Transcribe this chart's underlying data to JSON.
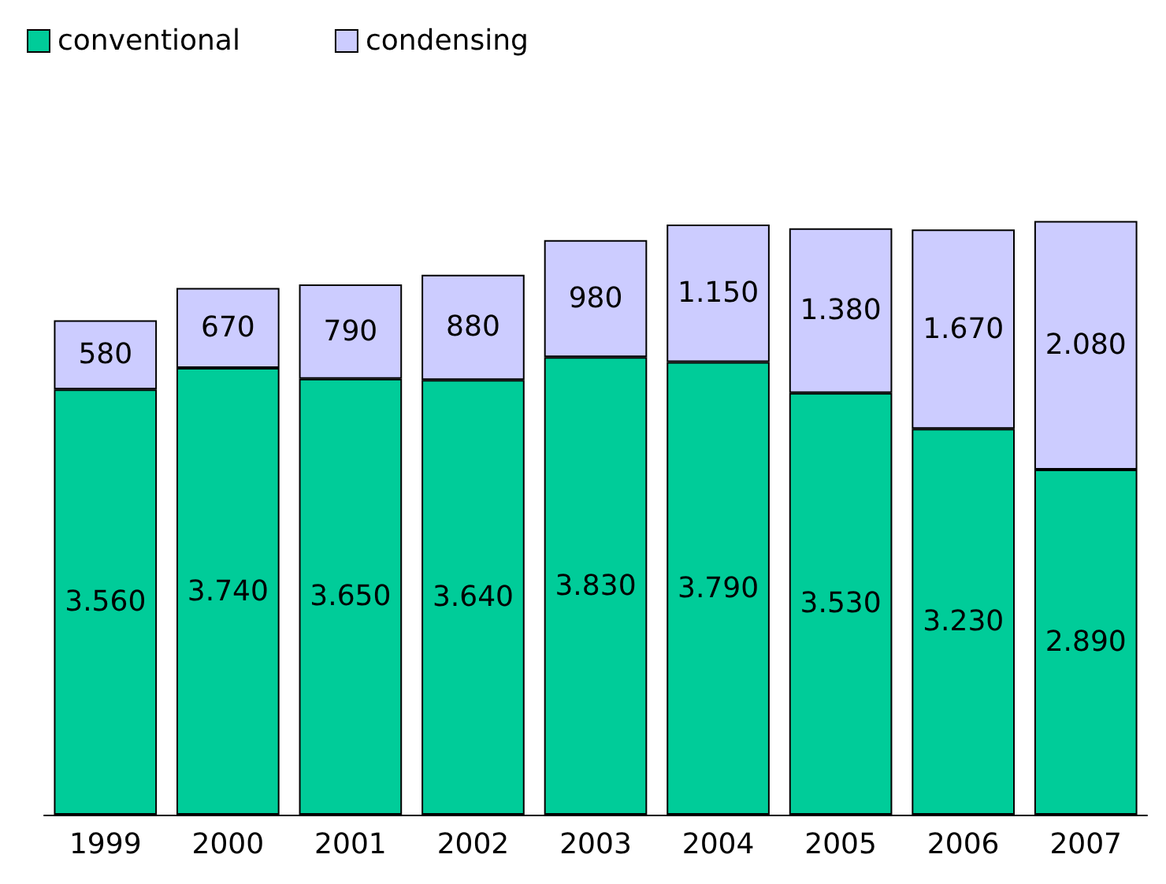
{
  "chart_data": {
    "type": "bar",
    "stacked": true,
    "categories": [
      "1999",
      "2000",
      "2001",
      "2002",
      "2003",
      "2004",
      "2005",
      "2006",
      "2007"
    ],
    "legend": "top left",
    "series": [
      {
        "name": "conventional",
        "color": "#00cc99",
        "values": [
          3560,
          3740,
          3650,
          3640,
          3830,
          3790,
          3530,
          3230,
          2890
        ],
        "value_labels": [
          "3.560",
          "3.740",
          "3.650",
          "3.640",
          "3.830",
          "3.790",
          "3.530",
          "3.230",
          "2.890"
        ]
      },
      {
        "name": "condensing",
        "color": "#ccccff",
        "values": [
          580,
          670,
          790,
          880,
          980,
          1150,
          1380,
          1670,
          2080
        ],
        "value_labels": [
          "580",
          "670",
          "790",
          "880",
          "980",
          "1.150",
          "1.380",
          "1.670",
          "2.080"
        ]
      }
    ]
  }
}
